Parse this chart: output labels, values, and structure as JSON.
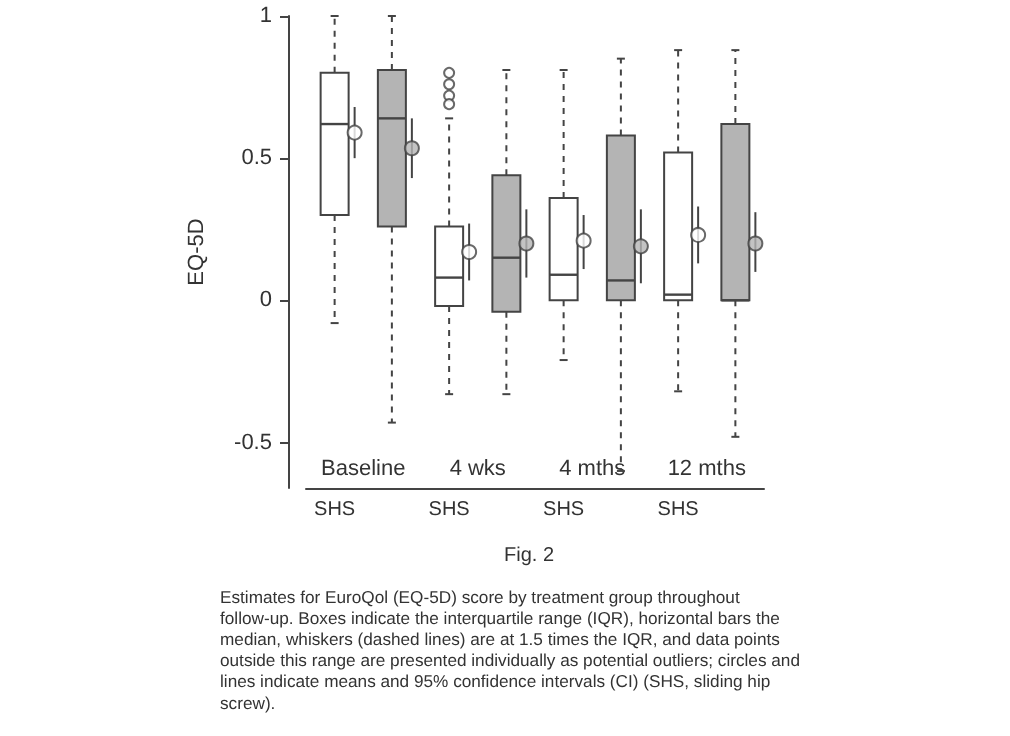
{
  "chart_data": {
    "type": "box",
    "title": "Fig. 2",
    "ylabel": "EQ-5D",
    "categories": [
      "SHS",
      null,
      "SHS",
      null,
      "SHS",
      null,
      "SHS",
      null
    ],
    "colors": [
      "#ffffff",
      "#b4b4b4",
      "#ffffff",
      "#b4b4b4",
      "#ffffff",
      "#b4b4b4",
      "#ffffff",
      "#b4b4b4"
    ],
    "boxes": [
      {
        "low": -0.08,
        "q1": 0.3,
        "median": 0.62,
        "q3": 0.8,
        "high": 1.0
      },
      {
        "low": -0.43,
        "q1": 0.26,
        "median": 0.64,
        "q3": 0.81,
        "high": 1.0
      },
      {
        "low": -0.33,
        "q1": -0.02,
        "median": 0.08,
        "q3": 0.26,
        "high": 0.64,
        "outliers": [
          0.8,
          0.76,
          0.72,
          0.69
        ]
      },
      {
        "low": -0.33,
        "q1": -0.04,
        "median": 0.15,
        "q3": 0.44,
        "high": 0.81
      },
      {
        "low": -0.21,
        "q1": 0.0,
        "median": 0.09,
        "q3": 0.36,
        "high": 0.81
      },
      {
        "low": -0.6,
        "q1": 0.0,
        "median": 0.07,
        "q3": 0.58,
        "high": 0.85
      },
      {
        "low": -0.32,
        "q1": 0.0,
        "median": 0.02,
        "q3": 0.52,
        "high": 0.88
      },
      {
        "low": -0.48,
        "q1": 0.0,
        "median": 0.0,
        "q3": 0.62,
        "high": 0.88
      }
    ],
    "series": [
      {
        "type": "scatter",
        "colors": [
          "#ffffff",
          "#b4b4b4",
          "#ffffff",
          "#b4b4b4",
          "#ffffff",
          "#b4b4b4",
          "#ffffff",
          "#b4b4b4"
        ],
        "values": [
          0.59,
          0.535,
          0.17,
          0.2,
          0.21,
          0.19,
          0.23,
          0.2
        ],
        "errors": [
          [
            0.5,
            0.68
          ],
          [
            0.43,
            0.64
          ],
          [
            0.07,
            0.27
          ],
          [
            0.08,
            0.32
          ],
          [
            0.11,
            0.3
          ],
          [
            0.06,
            0.32
          ],
          [
            0.13,
            0.33
          ],
          [
            0.1,
            0.31
          ]
        ]
      }
    ],
    "ylim": [
      -0.66,
      1
    ],
    "yticks": [
      -0.5,
      0,
      0.5,
      1
    ],
    "grid": false,
    "annotations": [
      "Baseline",
      "4 wks",
      "4 mths",
      "12 mths",
      "Estimates for EuroQol (EQ-5D) score by treatment group throughout follow-up. Boxes indicate the interquartile range (IQR), horizontal bars the median, whiskers (dashed lines) are at 1.5 times the IQR, and data points outside this range are presented individually as potential outliers; circles and lines indicate means and 95% confidence intervals (CI) (SHS, sliding hip screw)."
    ]
  }
}
